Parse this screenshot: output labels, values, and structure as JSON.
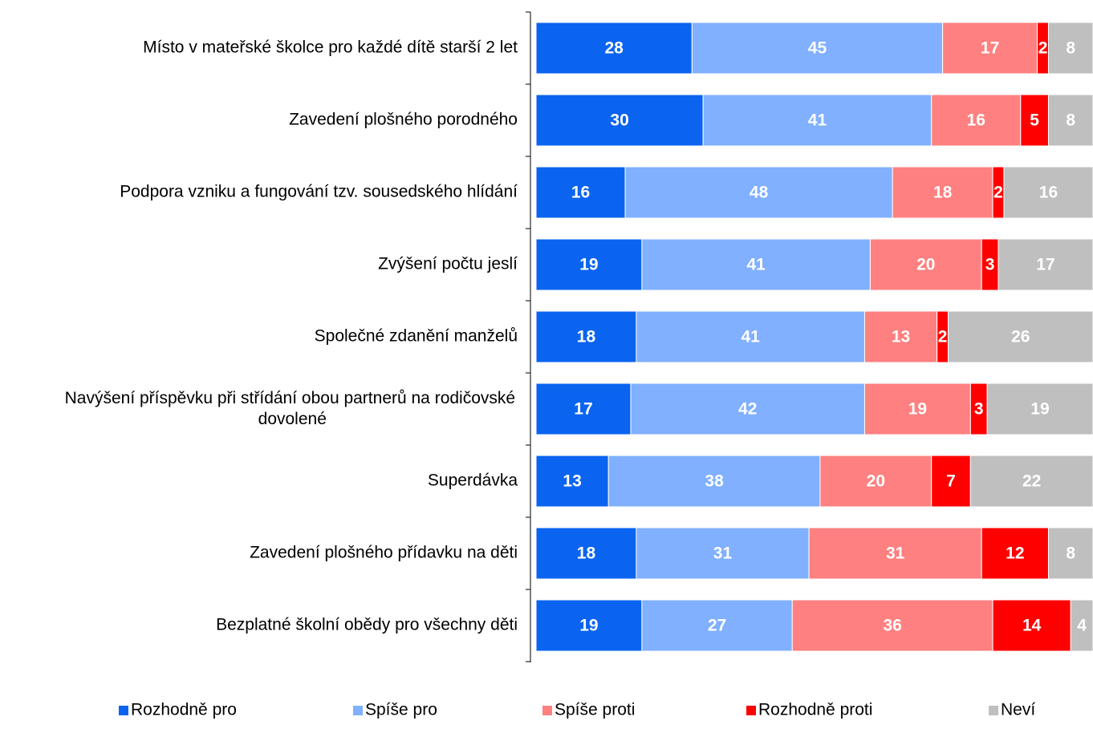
{
  "chart_data": {
    "type": "stacked-bar-horizontal",
    "categories": [
      "Místo v mateřské školce pro každé dítě starší 2 let",
      "Zavedení plošného porodného",
      "Podpora vzniku a fungování tzv. sousedského hlídání",
      "Zvýšení počtu jeslí",
      "Společné zdanění manželů",
      "Navýšení příspěvku při střídání obou partnerů na rodičovské dovolené",
      "Superdávka",
      "Zavedení plošného přídavku na děti",
      "Bezplatné školní obědy pro všechny děti"
    ],
    "series": [
      {
        "name": "Rozhodně pro",
        "color": "#0a64f0",
        "values": [
          28,
          30,
          16,
          19,
          18,
          17,
          13,
          18,
          19
        ]
      },
      {
        "name": "Spíše pro",
        "color": "#80b0ff",
        "values": [
          45,
          41,
          48,
          41,
          41,
          42,
          38,
          31,
          27
        ]
      },
      {
        "name": "Spíše proti",
        "color": "#ff8080",
        "values": [
          17,
          16,
          18,
          20,
          13,
          19,
          20,
          31,
          36
        ]
      },
      {
        "name": "Rozhodně proti",
        "color": "#ff0000",
        "values": [
          2,
          5,
          2,
          3,
          2,
          3,
          7,
          12,
          14
        ]
      },
      {
        "name": "Neví",
        "color": "#bfbfbf",
        "values": [
          8,
          8,
          16,
          17,
          26,
          19,
          22,
          8,
          4
        ]
      }
    ],
    "xlim": [
      0,
      100
    ],
    "legend": "bottom"
  }
}
